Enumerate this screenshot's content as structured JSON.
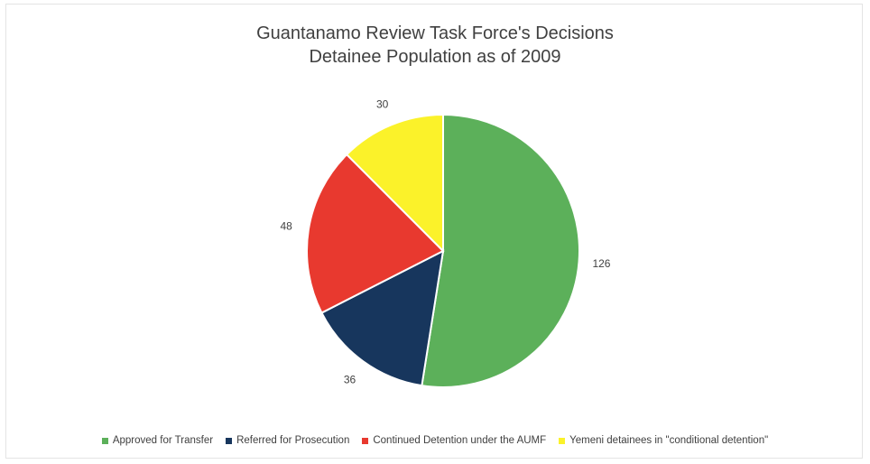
{
  "chart_data": {
    "type": "pie",
    "title": "Guantanamo Review Task Force's Decisions",
    "subtitle": "Detainee Population as of 2009",
    "slices": [
      {
        "label": "Approved for Transfer",
        "value": 126,
        "color": "#5cb05a"
      },
      {
        "label": "Referred for Prosecution",
        "value": 36,
        "color": "#17365d"
      },
      {
        "label": "Continued Detention under the AUMF",
        "value": 48,
        "color": "#e8392f"
      },
      {
        "label": "Yemeni detainees in \"conditional detention\"",
        "value": 30,
        "color": "#fbf22a"
      }
    ],
    "legend_position": "bottom",
    "start_angle": "top-clockwise"
  }
}
